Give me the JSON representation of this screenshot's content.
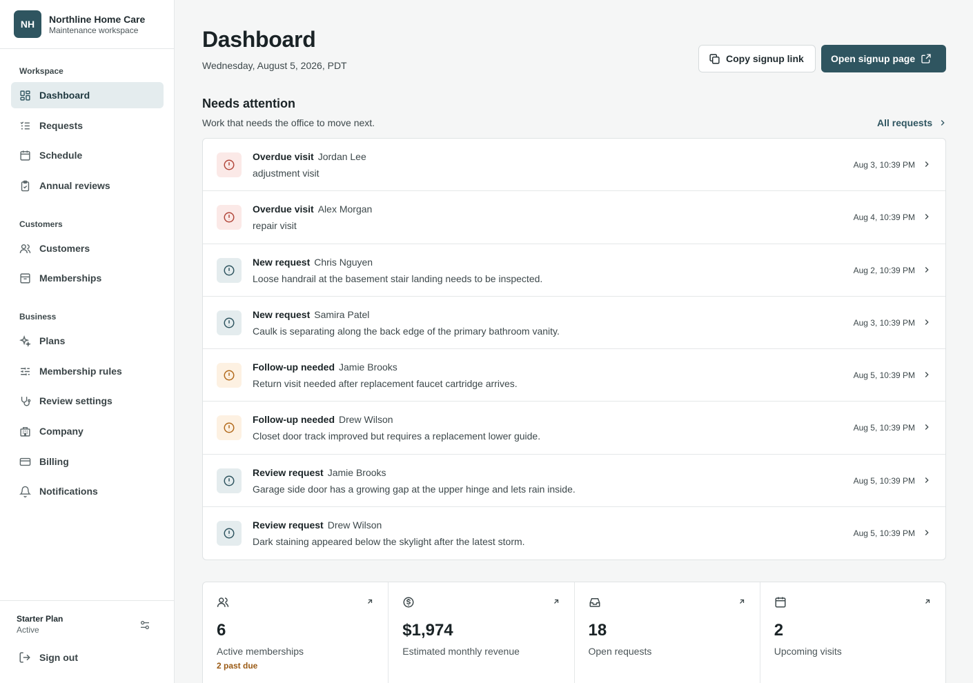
{
  "brand": {
    "initials": "NH",
    "name": "Northline Home Care",
    "subtitle": "Maintenance workspace"
  },
  "sidebar": {
    "sections": [
      {
        "label": "Workspace",
        "items": [
          {
            "label": "Dashboard",
            "icon": "grid-icon",
            "active": true
          },
          {
            "label": "Requests",
            "icon": "list-check-icon"
          },
          {
            "label": "Schedule",
            "icon": "calendar-icon"
          },
          {
            "label": "Annual reviews",
            "icon": "clipboard-check-icon"
          }
        ]
      },
      {
        "label": "Customers",
        "items": [
          {
            "label": "Customers",
            "icon": "users-icon"
          },
          {
            "label": "Memberships",
            "icon": "archive-icon"
          }
        ]
      },
      {
        "label": "Business",
        "items": [
          {
            "label": "Plans",
            "icon": "sparkles-icon"
          },
          {
            "label": "Membership rules",
            "icon": "sliders-icon"
          },
          {
            "label": "Review settings",
            "icon": "stethoscope-icon"
          },
          {
            "label": "Company",
            "icon": "building-icon"
          },
          {
            "label": "Billing",
            "icon": "credit-card-icon"
          },
          {
            "label": "Notifications",
            "icon": "bell-icon"
          }
        ]
      }
    ],
    "footer": {
      "plan_name": "Starter Plan",
      "plan_status": "Active",
      "signout": "Sign out"
    }
  },
  "header": {
    "title": "Dashboard",
    "date": "Wednesday, August 5, 2026, PDT",
    "copy_signup": "Copy signup link",
    "open_signup": "Open signup page"
  },
  "attention": {
    "title": "Needs attention",
    "subtitle": "Work that needs the office to move next.",
    "all_link": "All requests",
    "rows": [
      {
        "type": "Overdue visit",
        "name": "Jordan Lee",
        "desc": "adjustment visit",
        "time": "Aug 3, 10:39 PM",
        "tone": "red"
      },
      {
        "type": "Overdue visit",
        "name": "Alex Morgan",
        "desc": "repair visit",
        "time": "Aug 4, 10:39 PM",
        "tone": "red"
      },
      {
        "type": "New request",
        "name": "Chris Nguyen",
        "desc": "Loose handrail at the basement stair landing needs to be inspected.",
        "time": "Aug 2, 10:39 PM",
        "tone": "gray"
      },
      {
        "type": "New request",
        "name": "Samira Patel",
        "desc": "Caulk is separating along the back edge of the primary bathroom vanity.",
        "time": "Aug 3, 10:39 PM",
        "tone": "gray"
      },
      {
        "type": "Follow-up needed",
        "name": "Jamie Brooks",
        "desc": "Return visit needed after replacement faucet cartridge arrives.",
        "time": "Aug 5, 10:39 PM",
        "tone": "amber"
      },
      {
        "type": "Follow-up needed",
        "name": "Drew Wilson",
        "desc": "Closet door track improved but requires a replacement lower guide.",
        "time": "Aug 5, 10:39 PM",
        "tone": "amber"
      },
      {
        "type": "Review request",
        "name": "Jamie Brooks",
        "desc": "Garage side door has a growing gap at the upper hinge and lets rain inside.",
        "time": "Aug 5, 10:39 PM",
        "tone": "gray"
      },
      {
        "type": "Review request",
        "name": "Drew Wilson",
        "desc": "Dark staining appeared below the skylight after the latest storm.",
        "time": "Aug 5, 10:39 PM",
        "tone": "gray"
      }
    ]
  },
  "stats": [
    {
      "icon": "users-icon",
      "value": "6",
      "label": "Active memberships",
      "note": "2 past due"
    },
    {
      "icon": "dollar-circle-icon",
      "value": "$1,974",
      "label": "Estimated monthly revenue",
      "note": ""
    },
    {
      "icon": "inbox-icon",
      "value": "18",
      "label": "Open requests",
      "note": ""
    },
    {
      "icon": "calendar-icon",
      "value": "2",
      "label": "Upcoming visits",
      "note": ""
    }
  ],
  "colors": {
    "accent": "#2f5560",
    "danger": "#b2473b",
    "warning": "#b26a1c",
    "background": "#f5f6f6"
  }
}
